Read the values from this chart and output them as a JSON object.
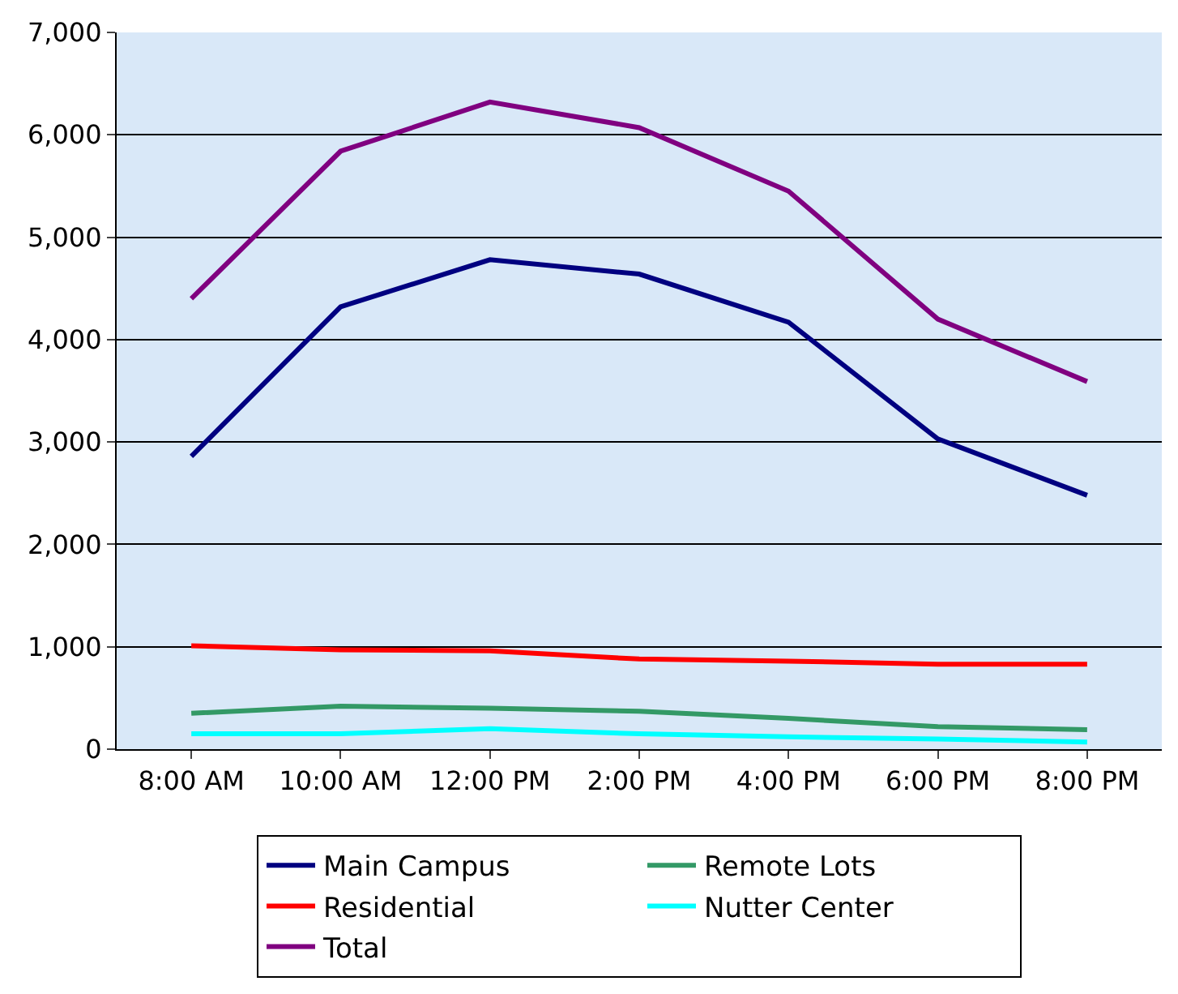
{
  "chart_data": {
    "type": "line",
    "categories": [
      "8:00 AM",
      "10:00 AM",
      "12:00 PM",
      "2:00 PM",
      "4:00 PM",
      "6:00 PM",
      "8:00 PM"
    ],
    "series": [
      {
        "name": "Main Campus",
        "color": "#000080",
        "values": [
          2860,
          4320,
          4780,
          4640,
          4170,
          3030,
          2480
        ]
      },
      {
        "name": "Remote Lots",
        "color": "#339966",
        "values": [
          350,
          420,
          400,
          370,
          300,
          220,
          190
        ]
      },
      {
        "name": "Residential",
        "color": "#ff0000",
        "values": [
          1010,
          970,
          960,
          880,
          860,
          830,
          830
        ]
      },
      {
        "name": "Nutter Center",
        "color": "#00ffff",
        "values": [
          150,
          150,
          200,
          150,
          120,
          100,
          70
        ]
      },
      {
        "name": "Total",
        "color": "#800080",
        "values": [
          4400,
          5840,
          6320,
          6070,
          5450,
          4200,
          3590
        ]
      }
    ],
    "ylim": [
      0,
      7000
    ],
    "yticks": [
      {
        "value": 0,
        "label": "0"
      },
      {
        "value": 1000,
        "label": "1,000"
      },
      {
        "value": 2000,
        "label": "2,000"
      },
      {
        "value": 3000,
        "label": "3,000"
      },
      {
        "value": 4000,
        "label": "4,000"
      },
      {
        "value": 5000,
        "label": "5,000"
      },
      {
        "value": 6000,
        "label": "6,000"
      },
      {
        "value": 7000,
        "label": "7,000"
      }
    ],
    "grid": "y",
    "legend": "bottom",
    "marker": "none",
    "line_style": "solid"
  }
}
